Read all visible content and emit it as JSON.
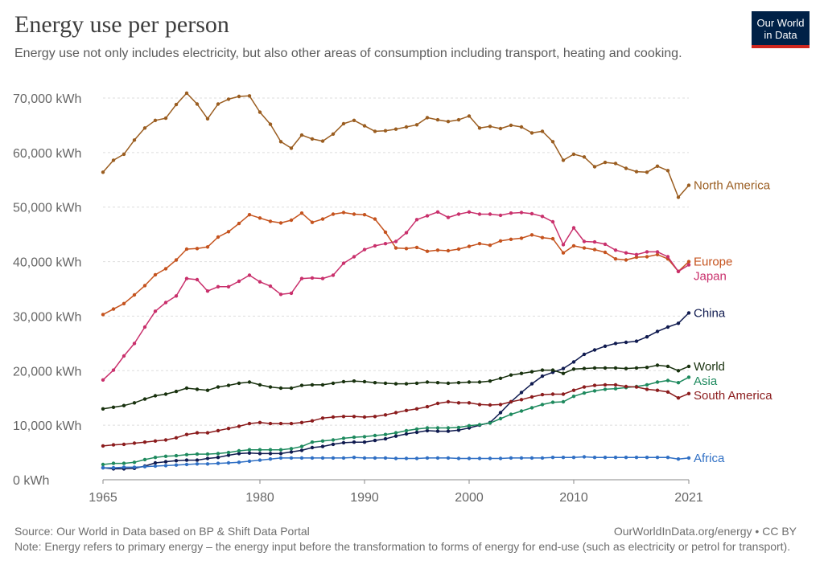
{
  "header": {
    "title": "Energy use per person",
    "subtitle": "Energy use not only includes electricity, but also other areas of consumption including transport, heating and cooking.",
    "logo_line1": "Our World",
    "logo_line2": "in Data"
  },
  "footer": {
    "source": "Source: Our World in Data based on BP & Shift Data Portal",
    "credit": "OurWorldInData.org/energy • CC BY",
    "note": "Note: Energy refers to primary energy – the energy input before the transformation to forms of energy for end-use (such as electricity or petrol for transport)."
  },
  "chart_data": {
    "type": "line",
    "x_start": 1965,
    "x_end": 2021,
    "xlim": [
      1965,
      2021
    ],
    "ylim": [
      0,
      70000
    ],
    "x_ticks": [
      1965,
      1980,
      1990,
      2000,
      2010,
      2021
    ],
    "y_ticks": [
      {
        "value": 0,
        "label": "0 kWh"
      },
      {
        "value": 10000,
        "label": "10,000 kWh"
      },
      {
        "value": 20000,
        "label": "20,000 kWh"
      },
      {
        "value": 30000,
        "label": "30,000 kWh"
      },
      {
        "value": 40000,
        "label": "40,000 kWh"
      },
      {
        "value": 50000,
        "label": "50,000 kWh"
      },
      {
        "value": 60000,
        "label": "60,000 kWh"
      },
      {
        "value": 70000,
        "label": "70,000 kWh"
      }
    ],
    "grid": "horizontal dashed",
    "legend": "right (end-of-line labels)",
    "series": [
      {
        "name": "North America",
        "color": "#9a5d20",
        "values": [
          56400,
          58600,
          59700,
          62300,
          64500,
          65900,
          66300,
          68800,
          70900,
          68900,
          66200,
          68900,
          69800,
          70300,
          70400,
          67400,
          65200,
          62000,
          60800,
          63200,
          62500,
          62100,
          63400,
          65300,
          65900,
          64900,
          63900,
          64000,
          64300,
          64700,
          65100,
          66400,
          66000,
          65700,
          66000,
          66700,
          64500,
          64800,
          64400,
          65000,
          64700,
          63600,
          63900,
          62000,
          58600,
          59700,
          59200,
          57400,
          58200,
          58000,
          57100,
          56500,
          56400,
          57500,
          56700,
          51800,
          54000
        ]
      },
      {
        "name": "Europe",
        "color": "#c5531e",
        "values": [
          30300,
          31300,
          32300,
          33900,
          35600,
          37600,
          38700,
          40300,
          42300,
          42400,
          42700,
          44500,
          45500,
          47000,
          48600,
          48000,
          47400,
          47100,
          47600,
          48900,
          47200,
          47800,
          48700,
          49000,
          48700,
          48600,
          47800,
          45400,
          42500,
          42400,
          42600,
          41900,
          42100,
          42000,
          42300,
          42800,
          43300,
          43000,
          43800,
          44100,
          44300,
          44900,
          44400,
          44200,
          41600,
          42900,
          42500,
          42200,
          41700,
          40500,
          40300,
          40800,
          40900,
          41300,
          40500,
          38200,
          40000
        ]
      },
      {
        "name": "Japan",
        "color": "#c9306c",
        "values": [
          18300,
          20100,
          22700,
          25000,
          28000,
          30900,
          32500,
          33700,
          36900,
          36700,
          34600,
          35400,
          35400,
          36400,
          37500,
          36300,
          35500,
          34000,
          34200,
          36900,
          37000,
          36900,
          37500,
          39700,
          40900,
          42200,
          42900,
          43300,
          43700,
          45300,
          47700,
          48400,
          49100,
          48100,
          48700,
          49100,
          48700,
          48700,
          48500,
          48900,
          49000,
          48800,
          48300,
          47300,
          43100,
          46200,
          43700,
          43600,
          43200,
          42100,
          41600,
          41300,
          41800,
          41800,
          40900,
          38200,
          39400
        ]
      },
      {
        "name": "China",
        "color": "#0f1a4f",
        "values": [
          2200,
          2000,
          2000,
          2100,
          2500,
          3100,
          3300,
          3500,
          3600,
          3600,
          3900,
          4100,
          4500,
          4800,
          4900,
          4800,
          4800,
          4800,
          5100,
          5400,
          5900,
          6100,
          6500,
          6800,
          6900,
          6900,
          7200,
          7500,
          8000,
          8400,
          8700,
          9000,
          8900,
          8900,
          9100,
          9500,
          10000,
          10500,
          12300,
          14300,
          16000,
          17600,
          19000,
          19700,
          20400,
          21600,
          23000,
          23800,
          24500,
          25000,
          25200,
          25400,
          26200,
          27200,
          28000,
          28700,
          30600
        ]
      },
      {
        "name": "World",
        "color": "#18310e",
        "values": [
          13000,
          13300,
          13600,
          14100,
          14800,
          15400,
          15700,
          16200,
          16800,
          16600,
          16400,
          17000,
          17300,
          17700,
          17900,
          17400,
          17000,
          16800,
          16800,
          17300,
          17400,
          17400,
          17700,
          18000,
          18100,
          18000,
          17800,
          17700,
          17600,
          17600,
          17700,
          17900,
          17800,
          17700,
          17800,
          17900,
          17900,
          18100,
          18600,
          19200,
          19500,
          19800,
          20100,
          20100,
          19500,
          20300,
          20400,
          20500,
          20500,
          20500,
          20400,
          20500,
          20600,
          21000,
          20800,
          20000,
          20800
        ]
      },
      {
        "name": "Asia",
        "color": "#1e8a5e",
        "values": [
          2800,
          3000,
          3000,
          3200,
          3700,
          4100,
          4300,
          4400,
          4600,
          4700,
          4700,
          4800,
          5000,
          5300,
          5500,
          5500,
          5500,
          5500,
          5700,
          6100,
          6900,
          7100,
          7300,
          7600,
          7800,
          7900,
          8100,
          8300,
          8600,
          9000,
          9300,
          9500,
          9500,
          9500,
          9600,
          9900,
          10100,
          10400,
          11200,
          12000,
          12600,
          13200,
          13800,
          14200,
          14300,
          15300,
          15900,
          16300,
          16600,
          16700,
          16900,
          17100,
          17400,
          17900,
          18200,
          17800,
          18800
        ]
      },
      {
        "name": "South America",
        "color": "#8b1c1d",
        "values": [
          6200,
          6400,
          6500,
          6700,
          6900,
          7100,
          7300,
          7700,
          8300,
          8600,
          8600,
          9000,
          9400,
          9800,
          10300,
          10500,
          10300,
          10300,
          10300,
          10500,
          10800,
          11300,
          11500,
          11600,
          11600,
          11500,
          11600,
          11900,
          12300,
          12700,
          13000,
          13400,
          14000,
          14300,
          14100,
          14100,
          13800,
          13700,
          13800,
          14300,
          14700,
          15200,
          15600,
          15700,
          15700,
          16400,
          17000,
          17300,
          17400,
          17400,
          17100,
          17000,
          16600,
          16400,
          16100,
          15000,
          15800
        ]
      },
      {
        "name": "Africa",
        "color": "#2f6fc4",
        "values": [
          2200,
          2200,
          2300,
          2300,
          2400,
          2500,
          2600,
          2700,
          2800,
          2900,
          2900,
          3000,
          3100,
          3200,
          3400,
          3600,
          3800,
          4000,
          4000,
          4000,
          4000,
          4000,
          4000,
          4000,
          4100,
          4000,
          4000,
          4000,
          3900,
          3900,
          3900,
          4000,
          4000,
          4000,
          3900,
          3900,
          3900,
          3900,
          3900,
          4000,
          4000,
          4000,
          4000,
          4100,
          4100,
          4100,
          4200,
          4100,
          4100,
          4100,
          4100,
          4100,
          4100,
          4100,
          4100,
          3800,
          4000
        ]
      }
    ]
  }
}
